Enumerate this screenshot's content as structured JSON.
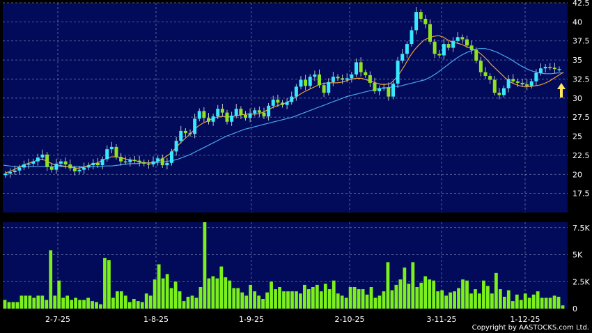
{
  "copyright": "Copyright by AASTOCKS.com Ltd.",
  "colors": {
    "panel_bg": "#020a5a",
    "page_bg": "#000000",
    "grid": "#6e7aa8",
    "candle_up": "#39e8ff",
    "candle_down": "#8fe31e",
    "volume": "#7cf01a",
    "ma_short": "#f0a030",
    "ma_long": "#4aa8f0",
    "arrow": "#ffe65a",
    "text": "#ffffff"
  },
  "chart_data": [
    {
      "type": "candlestick",
      "title": "",
      "ylim": [
        15,
        42.5
      ],
      "y_ticks": [
        "17.5",
        "20",
        "22.5",
        "25",
        "27.5",
        "30",
        "32.5",
        "35",
        "37.5",
        "40",
        "42.5"
      ],
      "x_tick_labels": [
        "2-7-25",
        "1-8-25",
        "1-9-25",
        "2-10-25",
        "3-11-25",
        "1-12-25"
      ],
      "grid": true,
      "close": [
        20.1,
        20.3,
        20.5,
        20.9,
        21.3,
        21.4,
        21.7,
        22.2,
        22.6,
        21.0,
        20.6,
        21.4,
        21.7,
        21.3,
        20.8,
        20.4,
        20.6,
        20.9,
        21.2,
        21.5,
        21.2,
        22.0,
        23.3,
        23.6,
        22.3,
        21.7,
        21.6,
        21.9,
        21.8,
        21.6,
        21.4,
        21.3,
        21.7,
        22.1,
        21.2,
        21.5,
        23.0,
        24.4,
        25.7,
        25.4,
        25.3,
        27.3,
        28.3,
        27.4,
        26.9,
        27.6,
        28.6,
        28.1,
        26.9,
        27.7,
        28.6,
        27.8,
        27.4,
        28.0,
        28.4,
        28.1,
        27.6,
        29.0,
        29.8,
        29.4,
        29.1,
        29.5,
        30.2,
        31.5,
        32.4,
        31.6,
        32.8,
        33.1,
        31.7,
        30.7,
        32.1,
        32.8,
        32.6,
        32.4,
        32.6,
        33.1,
        34.7,
        33.4,
        33.0,
        32.0,
        30.9,
        31.3,
        31.4,
        30.2,
        31.9,
        34.9,
        35.8,
        37.1,
        38.9,
        41.3,
        40.4,
        39.7,
        37.4,
        35.8,
        35.6,
        37.1,
        36.6,
        37.5,
        38.0,
        37.7,
        36.9,
        36.3,
        34.9,
        33.4,
        32.9,
        32.4,
        30.7,
        30.4,
        31.3,
        32.5,
        32.2,
        32.0,
        31.8,
        31.6,
        32.2,
        33.3,
        33.9,
        34.1,
        34.0,
        33.8,
        33.8
      ],
      "ma_short": [
        20.2,
        20.4,
        20.7,
        21.0,
        21.3,
        21.5,
        21.7,
        22.0,
        21.9,
        21.6,
        21.3,
        21.2,
        21.1,
        21.0,
        20.9,
        20.8,
        20.9,
        21.1,
        21.3,
        21.5,
        21.8,
        22.1,
        22.3,
        22.3,
        22.2,
        22.0,
        21.9,
        21.8,
        21.6,
        21.5,
        21.5,
        21.6,
        21.8,
        22.2,
        22.6,
        23.2,
        23.9,
        24.5,
        25.1,
        25.7,
        26.3,
        26.7,
        27.0,
        27.3,
        27.5,
        27.6,
        27.6,
        27.6,
        27.7,
        27.8,
        27.9,
        27.9,
        27.9,
        28.0,
        28.3,
        28.6,
        28.9,
        29.1,
        29.3,
        29.6,
        30.0,
        30.4,
        30.8,
        31.1,
        31.4,
        31.7,
        31.9,
        32.0,
        32.0,
        32.0,
        32.1,
        32.3,
        32.5,
        32.6,
        32.6,
        32.4,
        32.2,
        32.0,
        31.8,
        31.8,
        31.9,
        32.5,
        33.3,
        34.3,
        35.4,
        36.3,
        37.0,
        37.6,
        37.9,
        38.1,
        38.2,
        38.0,
        37.6,
        37.3,
        37.2,
        37.0,
        36.7,
        36.5,
        36.2,
        35.7,
        35.1,
        34.4,
        33.8,
        33.2,
        32.6,
        32.1,
        31.8,
        31.6,
        31.5,
        31.5,
        31.6,
        31.7,
        31.9,
        32.2,
        32.6,
        33.0,
        33.4
      ],
      "ma_long": [
        21.2,
        21.1,
        21.0,
        21.0,
        21.0,
        21.0,
        21.0,
        21.0,
        21.0,
        21.0,
        21.0,
        21.0,
        21.0,
        21.0,
        21.0,
        21.0,
        21.0,
        21.1,
        21.1,
        21.2,
        21.3,
        21.4,
        21.4,
        21.5,
        21.5,
        21.5,
        21.6,
        21.7,
        21.8,
        22.0,
        22.3,
        22.6,
        23.0,
        23.4,
        23.8,
        24.2,
        24.6,
        25.0,
        25.3,
        25.6,
        25.9,
        26.1,
        26.3,
        26.5,
        26.7,
        26.9,
        27.1,
        27.3,
        27.5,
        27.8,
        28.1,
        28.4,
        28.7,
        29.0,
        29.3,
        29.6,
        29.9,
        30.2,
        30.4,
        30.6,
        30.8,
        31.0,
        31.2,
        31.3,
        31.4,
        31.5,
        31.6,
        31.8,
        32.0,
        32.2,
        32.4,
        32.8,
        33.3,
        33.9,
        34.5,
        35.1,
        35.6,
        36.0,
        36.3,
        36.5,
        36.5,
        36.3,
        36.0,
        35.6,
        35.2,
        34.7,
        34.2,
        33.8,
        33.5,
        33.3,
        33.2,
        33.2,
        33.3,
        33.3
      ]
    },
    {
      "type": "bar",
      "title": "",
      "ylim": [
        0,
        8000
      ],
      "y_ticks": [
        "0",
        "2.5K",
        "5K",
        "7.5K"
      ],
      "grid": true,
      "values": [
        800,
        600,
        600,
        600,
        1200,
        1200,
        1200,
        1000,
        1200,
        1200,
        800,
        5400,
        1200,
        2600,
        1000,
        1200,
        800,
        1000,
        800,
        800,
        1000,
        700,
        600,
        400,
        4700,
        4500,
        1000,
        1600,
        1600,
        1200,
        600,
        900,
        700,
        600,
        1400,
        1200,
        2700,
        4100,
        2800,
        3200,
        1900,
        2500,
        1600,
        700,
        1100,
        1200,
        1000,
        2000,
        8000,
        2800,
        3000,
        2800,
        3900,
        2900,
        2600,
        1900,
        1900,
        1500,
        1200,
        2200,
        1600,
        1200,
        900,
        1500,
        2500,
        1800,
        2000,
        1600,
        1600,
        1600,
        1600,
        1400,
        2200,
        1800,
        2000,
        2200,
        1600,
        2300,
        1800,
        2600,
        1400,
        1200,
        1000,
        2000,
        2000,
        1800,
        1800,
        1300,
        2000,
        1000,
        1200,
        1600,
        4300,
        1700,
        2200,
        2700,
        3800,
        2300,
        4300,
        2000,
        2400,
        3000,
        2700,
        2600,
        1600,
        1700,
        1200,
        1500,
        1600,
        1900,
        2700,
        2600,
        1400,
        1800,
        1400,
        2600,
        2100,
        1400,
        3300,
        1800,
        1100,
        1700,
        700,
        1300,
        800,
        1400,
        1000,
        1300,
        1600,
        1000,
        1000,
        1000,
        1200,
        1100,
        300
      ]
    }
  ]
}
